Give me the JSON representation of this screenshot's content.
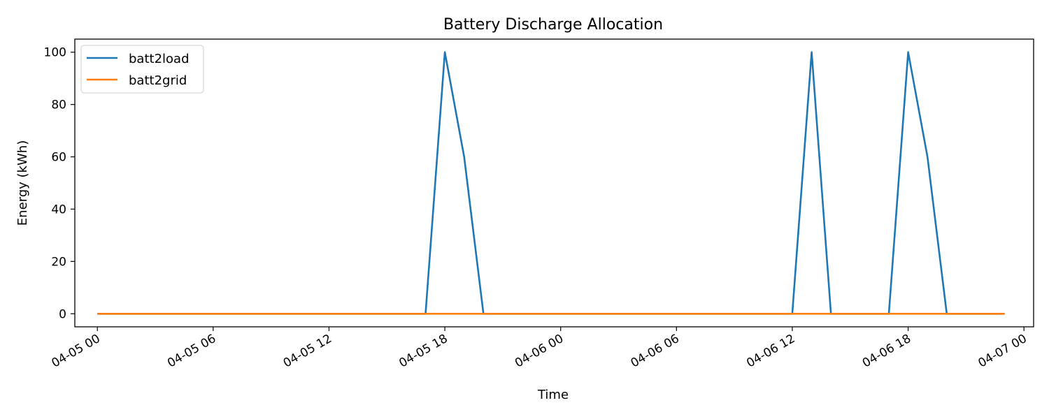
{
  "chart_data": {
    "type": "line",
    "title": "Battery Discharge Allocation",
    "xlabel": "Time",
    "ylabel": "Energy (kWh)",
    "x_axis_type": "datetime",
    "xlim": [
      "2022-04-04 22:50",
      "2022-04-07 00:30"
    ],
    "ylim": [
      -5,
      105
    ],
    "yticks": [
      0,
      20,
      40,
      60,
      80,
      100
    ],
    "xticks": [
      {
        "t": "2022-04-05 00:00",
        "label": "04-05 00"
      },
      {
        "t": "2022-04-05 06:00",
        "label": "04-05 06"
      },
      {
        "t": "2022-04-05 12:00",
        "label": "04-05 12"
      },
      {
        "t": "2022-04-05 18:00",
        "label": "04-05 18"
      },
      {
        "t": "2022-04-06 00:00",
        "label": "04-06 00"
      },
      {
        "t": "2022-04-06 06:00",
        "label": "04-06 06"
      },
      {
        "t": "2022-04-06 12:00",
        "label": "04-06 12"
      },
      {
        "t": "2022-04-06 18:00",
        "label": "04-06 18"
      },
      {
        "t": "2022-04-07 00:00",
        "label": "04-07 00"
      }
    ],
    "grid": false,
    "legend_position": "top-left",
    "series": [
      {
        "name": "batt2load",
        "color": "#1f77b4",
        "points": [
          {
            "t": "2022-04-05 00:00",
            "y": 0
          },
          {
            "t": "2022-04-05 17:00",
            "y": 0
          },
          {
            "t": "2022-04-05 18:00",
            "y": 100
          },
          {
            "t": "2022-04-05 19:00",
            "y": 60
          },
          {
            "t": "2022-04-05 20:00",
            "y": 0
          },
          {
            "t": "2022-04-06 12:00",
            "y": 0
          },
          {
            "t": "2022-04-06 13:00",
            "y": 100
          },
          {
            "t": "2022-04-06 14:00",
            "y": 0
          },
          {
            "t": "2022-04-06 17:00",
            "y": 0
          },
          {
            "t": "2022-04-06 18:00",
            "y": 100
          },
          {
            "t": "2022-04-06 19:00",
            "y": 60
          },
          {
            "t": "2022-04-06 20:00",
            "y": 0
          },
          {
            "t": "2022-04-06 23:00",
            "y": 0
          }
        ]
      },
      {
        "name": "batt2grid",
        "color": "#ff7f0e",
        "points": [
          {
            "t": "2022-04-05 00:00",
            "y": 0
          },
          {
            "t": "2022-04-06 23:00",
            "y": 0
          }
        ]
      }
    ]
  }
}
